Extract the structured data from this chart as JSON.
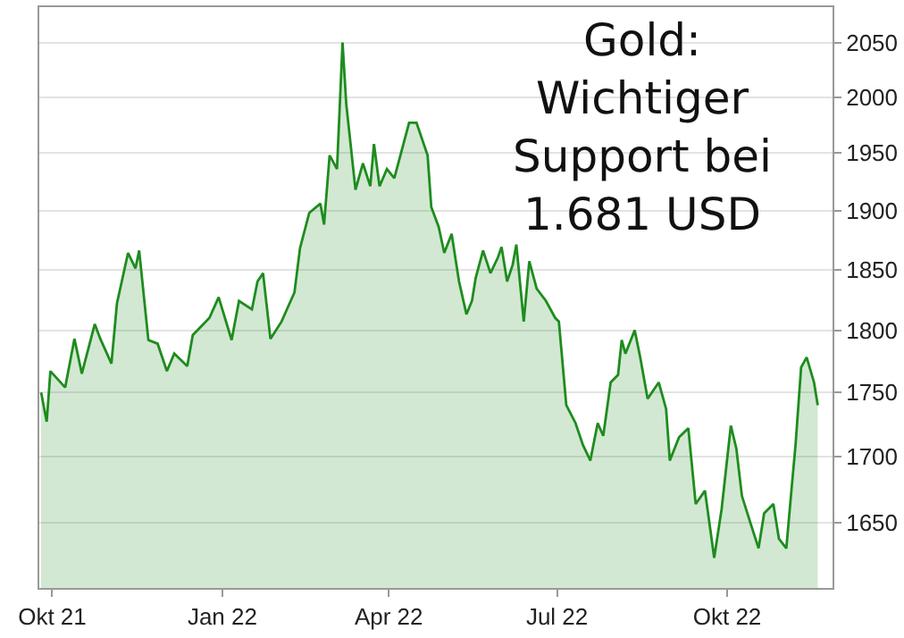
{
  "chart_data": {
    "type": "area",
    "annotations": [
      "Gold:\nWichtiger\nSupport bei\n1.681 USD"
    ],
    "x": [
      "2021-09-25",
      "2021-09-28",
      "2021-09-30",
      "2021-10-08",
      "2021-10-13",
      "2021-10-17",
      "2021-10-24",
      "2021-10-27",
      "2021-11-02",
      "2021-11-05",
      "2021-11-11",
      "2021-11-15",
      "2021-11-17",
      "2021-11-22",
      "2021-11-27",
      "2021-12-02",
      "2021-12-06",
      "2021-12-13",
      "2021-12-16",
      "2021-12-25",
      "2021-12-30",
      "2022-01-06",
      "2022-01-10",
      "2022-01-17",
      "2022-01-20",
      "2022-01-23",
      "2022-01-27",
      "2022-02-02",
      "2022-02-09",
      "2022-02-12",
      "2022-02-17",
      "2022-02-23",
      "2022-02-25",
      "2022-02-28",
      "2022-03-04",
      "2022-03-07",
      "2022-03-09",
      "2022-03-14",
      "2022-03-18",
      "2022-03-22",
      "2022-03-24",
      "2022-03-27",
      "2022-03-31",
      "2022-04-04",
      "2022-04-12",
      "2022-04-16",
      "2022-04-22",
      "2022-04-24",
      "2022-04-28",
      "2022-05-01",
      "2022-05-05",
      "2022-05-09",
      "2022-05-13",
      "2022-05-16",
      "2022-05-18",
      "2022-05-22",
      "2022-05-26",
      "2022-05-30",
      "2022-06-01",
      "2022-06-04",
      "2022-06-07",
      "2022-06-09",
      "2022-06-13",
      "2022-06-16",
      "2022-06-20",
      "2022-06-25",
      "2022-06-30",
      "2022-07-02",
      "2022-07-06",
      "2022-07-11",
      "2022-07-15",
      "2022-07-19",
      "2022-07-23",
      "2022-07-26",
      "2022-07-30",
      "2022-08-03",
      "2022-08-05",
      "2022-08-07",
      "2022-08-12",
      "2022-08-15",
      "2022-08-19",
      "2022-08-25",
      "2022-08-29",
      "2022-08-31",
      "2022-09-05",
      "2022-09-10",
      "2022-09-14",
      "2022-09-19",
      "2022-09-24",
      "2022-09-28",
      "2022-10-03",
      "2022-10-06",
      "2022-10-09",
      "2022-10-14",
      "2022-10-18",
      "2022-10-21",
      "2022-10-26",
      "2022-10-29",
      "2022-11-02",
      "2022-11-05",
      "2022-11-07",
      "2022-11-10",
      "2022-11-13",
      "2022-11-17",
      "2022-11-19"
    ],
    "series": [
      {
        "color": "#1e8c1e",
        "values": [
          1750,
          1727,
          1767,
          1754,
          1793,
          1765,
          1805,
          1793,
          1773,
          1822,
          1864,
          1851,
          1866,
          1792,
          1789,
          1767,
          1781,
          1771,
          1796,
          1810,
          1827,
          1792,
          1824,
          1817,
          1840,
          1847,
          1793,
          1807,
          1831,
          1868,
          1898,
          1906,
          1888,
          1948,
          1936,
          2050,
          1994,
          1918,
          1941,
          1921,
          1958,
          1921,
          1936,
          1928,
          1977,
          1977,
          1948,
          1903,
          1886,
          1864,
          1880,
          1840,
          1813,
          1824,
          1843,
          1866,
          1847,
          1860,
          1869,
          1840,
          1854,
          1871,
          1807,
          1857,
          1834,
          1824,
          1810,
          1807,
          1740,
          1726,
          1709,
          1697,
          1726,
          1716,
          1758,
          1764,
          1792,
          1781,
          1800,
          1778,
          1745,
          1758,
          1737,
          1697,
          1715,
          1722,
          1664,
          1674,
          1624,
          1660,
          1724,
          1706,
          1670,
          1648,
          1631,
          1657,
          1664,
          1638,
          1631,
          1678,
          1709,
          1770,
          1778,
          1758,
          1740
        ]
      }
    ],
    "log": true,
    "ylim": [
      1602,
      2083
    ],
    "yticks": [
      1650,
      1700,
      1750,
      1800,
      1850,
      1900,
      1950,
      2000,
      2050
    ],
    "xlim": [
      "2021-09-24",
      "2022-11-27"
    ],
    "xticks": [
      {
        "value": "2021-10-01",
        "label": "Okt 21"
      },
      {
        "value": "2022-01-01",
        "label": "Jan 22"
      },
      {
        "value": "2022-04-01",
        "label": "Apr 22"
      },
      {
        "value": "2022-07-01",
        "label": "Jul 22"
      },
      {
        "value": "2022-10-01",
        "label": "Okt 22"
      }
    ],
    "grid": "y"
  }
}
